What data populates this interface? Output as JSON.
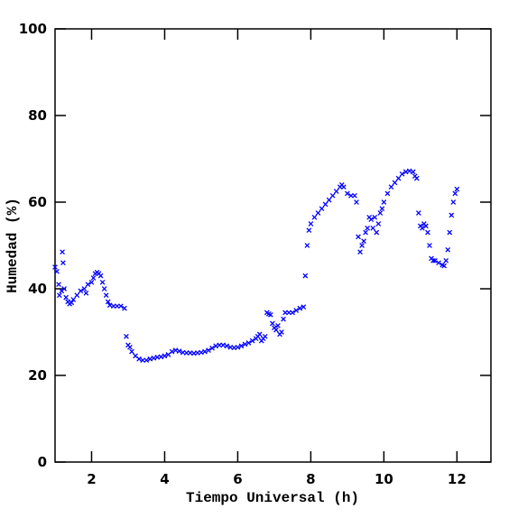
{
  "chart_data": {
    "type": "scatter",
    "xlabel": "Tiempo Universal (h)",
    "ylabel": "Humedad (%)",
    "xlim": [
      1,
      12.93
    ],
    "ylim": [
      0,
      100
    ],
    "xticks": [
      2,
      4,
      6,
      8,
      10,
      12
    ],
    "yticks": [
      0,
      20,
      40,
      60,
      80,
      100
    ],
    "series": [
      {
        "color": "#0000ff",
        "x": [
          1.0,
          1.05,
          1.1,
          1.12,
          1.18,
          1.2,
          1.22,
          1.25,
          1.3,
          1.35,
          1.4,
          1.45,
          1.5,
          1.6,
          1.7,
          1.8,
          1.85,
          1.9,
          2.0,
          2.05,
          2.1,
          2.15,
          2.2,
          2.25,
          2.3,
          2.35,
          2.4,
          2.45,
          2.5,
          2.6,
          2.7,
          2.8,
          2.9,
          2.95,
          3.0,
          3.05,
          3.1,
          3.2,
          3.3,
          3.4,
          3.5,
          3.6,
          3.7,
          3.8,
          3.9,
          4.0,
          4.1,
          4.2,
          4.3,
          4.4,
          4.5,
          4.6,
          4.7,
          4.8,
          4.9,
          5.0,
          5.1,
          5.2,
          5.3,
          5.4,
          5.5,
          5.6,
          5.7,
          5.8,
          5.9,
          6.0,
          6.1,
          6.2,
          6.3,
          6.4,
          6.5,
          6.55,
          6.6,
          6.65,
          6.7,
          6.75,
          6.8,
          6.85,
          6.9,
          6.95,
          7.0,
          7.05,
          7.1,
          7.15,
          7.2,
          7.25,
          7.3,
          7.4,
          7.5,
          7.6,
          7.7,
          7.8,
          7.85,
          7.9,
          7.95,
          8.0,
          8.1,
          8.2,
          8.3,
          8.4,
          8.5,
          8.6,
          8.7,
          8.8,
          8.85,
          8.9,
          9.0,
          9.1,
          9.2,
          9.25,
          9.3,
          9.35,
          9.4,
          9.45,
          9.5,
          9.55,
          9.6,
          9.65,
          9.7,
          9.75,
          9.8,
          9.85,
          9.9,
          9.95,
          10.0,
          10.1,
          10.2,
          10.3,
          10.4,
          10.5,
          10.6,
          10.7,
          10.8,
          10.85,
          10.9,
          10.95,
          11.0,
          11.05,
          11.1,
          11.15,
          11.2,
          11.25,
          11.3,
          11.35,
          11.4,
          11.5,
          11.6,
          11.65,
          11.7,
          11.75,
          11.8,
          11.85,
          11.9,
          11.95,
          12.0
        ],
        "values": [
          45,
          44,
          41,
          38.5,
          39.5,
          48.5,
          46,
          40,
          38,
          37,
          36.5,
          36.8,
          37.5,
          38.5,
          39.5,
          40,
          39,
          41,
          41.5,
          42.5,
          43.5,
          43.8,
          43.5,
          43,
          41.5,
          40,
          38.5,
          37,
          36.2,
          36,
          36,
          36,
          35.5,
          29,
          27,
          26.5,
          25.5,
          24.5,
          23.8,
          23.5,
          23.5,
          23.8,
          24,
          24.2,
          24.3,
          24.5,
          24.8,
          25.5,
          25.8,
          25.6,
          25.3,
          25.2,
          25.2,
          25.1,
          25.2,
          25.3,
          25.5,
          25.8,
          26.3,
          26.8,
          27,
          27,
          26.8,
          26.5,
          26.4,
          26.5,
          26.8,
          27.2,
          27.5,
          28,
          28.5,
          29,
          29.5,
          28,
          28.5,
          29,
          34.5,
          34.2,
          34,
          32,
          31,
          30.5,
          31.5,
          29.5,
          30,
          33,
          34.5,
          34.5,
          34.5,
          35,
          35.5,
          35.8,
          43,
          50,
          53.5,
          55,
          56.5,
          57.5,
          58.5,
          59.5,
          60.5,
          61.5,
          62.5,
          63.5,
          64,
          63.5,
          62,
          61.5,
          61.5,
          60,
          52,
          48.5,
          50,
          51,
          53,
          54,
          56.5,
          56,
          54,
          56.5,
          53,
          55,
          57.5,
          58.5,
          60,
          62,
          63.5,
          64.5,
          65.5,
          66.5,
          67,
          67.2,
          67,
          66,
          65.5,
          57.5,
          54.5,
          54,
          55,
          54.5,
          53,
          50,
          47,
          46.5,
          46.5,
          46,
          45.5,
          45.3,
          46.5,
          49,
          53,
          57,
          60,
          62,
          63
        ]
      }
    ]
  }
}
